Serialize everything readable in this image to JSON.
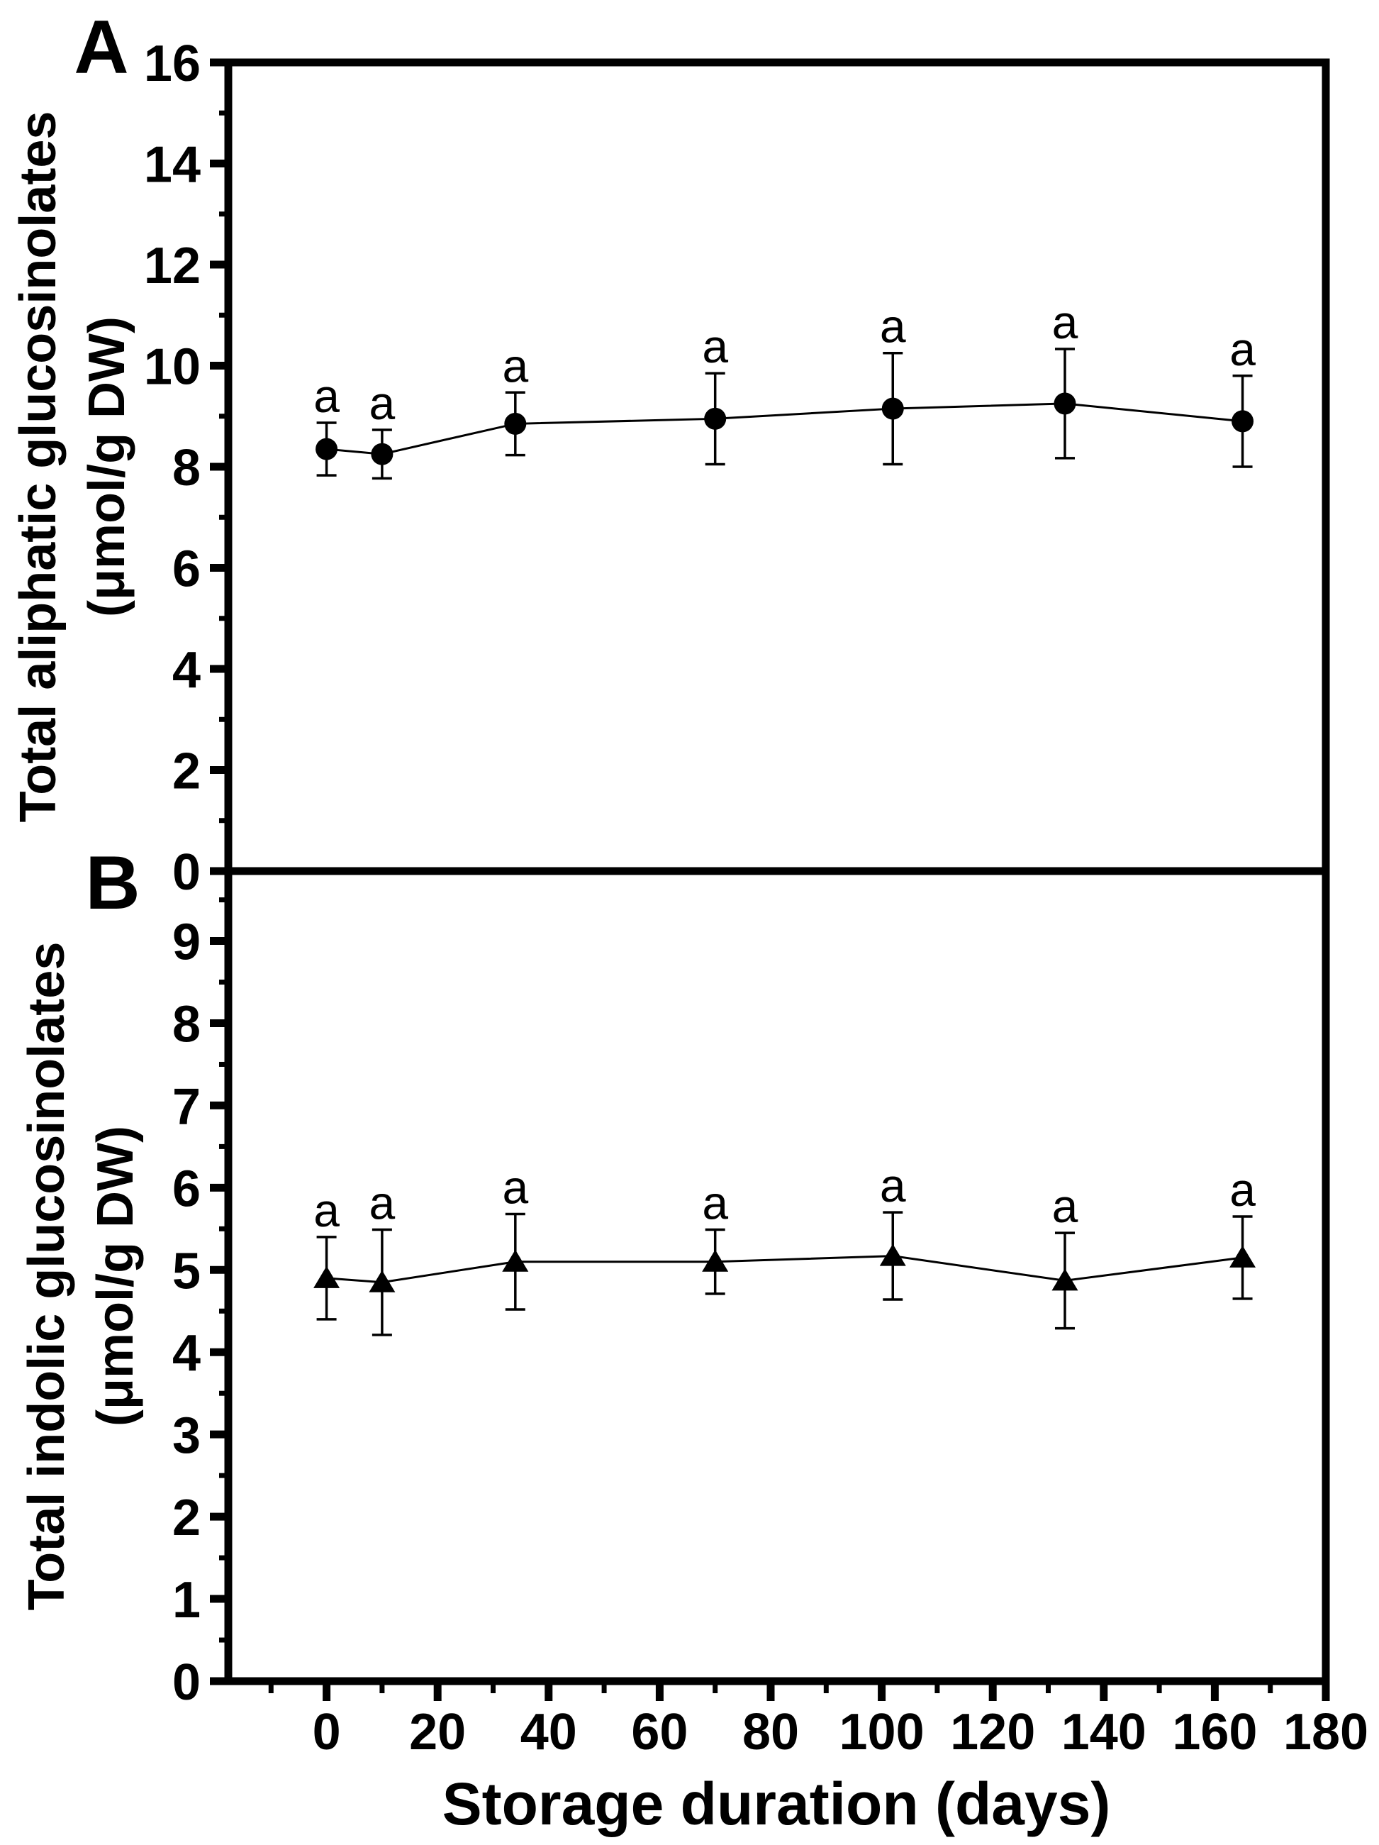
{
  "figure": {
    "x_title": "Storage duration (days)",
    "panels": [
      {
        "letter": "A",
        "y_title_line1": "Total aliphatic glucosinolates",
        "y_title_line2": "(μmol/g DW)"
      },
      {
        "letter": "B",
        "y_title_line1": "Total indolic glucosinolates",
        "y_title_line2": "(μmol/g DW)"
      }
    ]
  },
  "chart_data": [
    {
      "type": "line",
      "panel": "A",
      "series_name": "Total aliphatic glucosinolates",
      "marker": "circle",
      "color": "#000000",
      "title": "",
      "ylabel": "Total aliphatic glucosinolates (μmol/g DW)",
      "xlabel": "",
      "grid": false,
      "x": [
        0,
        10,
        34,
        70,
        102,
        133,
        165
      ],
      "y": [
        8.35,
        8.25,
        8.85,
        8.95,
        9.15,
        9.25,
        8.9
      ],
      "yerr": [
        0.52,
        0.48,
        0.62,
        0.9,
        1.1,
        1.08,
        0.9
      ],
      "point_labels": [
        "a",
        "a",
        "a",
        "a",
        "a",
        "a",
        "a"
      ],
      "xlim": [
        -17.7,
        180
      ],
      "ylim": [
        0,
        16
      ],
      "y_major_ticks": [
        0,
        2,
        4,
        6,
        8,
        10,
        12,
        14,
        16
      ],
      "y_minor_ticks": [
        1,
        3,
        5,
        7,
        9,
        11,
        13,
        15
      ]
    },
    {
      "type": "line",
      "panel": "B",
      "series_name": "Total indolic glucosinolates",
      "marker": "triangle",
      "color": "#000000",
      "title": "",
      "ylabel": "Total indolic glucosinolates (μmol/g DW)",
      "xlabel": "Storage duration (days)",
      "grid": false,
      "x": [
        0,
        10,
        34,
        70,
        102,
        133,
        165
      ],
      "y": [
        4.9,
        4.85,
        5.1,
        5.1,
        5.17,
        4.87,
        5.15
      ],
      "yerr": [
        0.5,
        0.64,
        0.58,
        0.39,
        0.53,
        0.58,
        0.5
      ],
      "point_labels": [
        "a",
        "a",
        "a",
        "a",
        "a",
        "a",
        "a"
      ],
      "xlim": [
        -17.7,
        180
      ],
      "ylim": [
        0,
        9.85
      ],
      "y_major_ticks": [
        0,
        1,
        2,
        3,
        4,
        5,
        6,
        7,
        8,
        9
      ],
      "y_minor_ticks": [
        0.5,
        1.5,
        2.5,
        3.5,
        4.5,
        5.5,
        6.5,
        7.5,
        8.5,
        9.5
      ],
      "x_major_ticks": [
        0,
        20,
        40,
        60,
        80,
        100,
        120,
        140,
        160,
        180
      ],
      "x_minor_ticks": [
        -10,
        10,
        30,
        50,
        70,
        90,
        110,
        130,
        150,
        170
      ]
    }
  ]
}
